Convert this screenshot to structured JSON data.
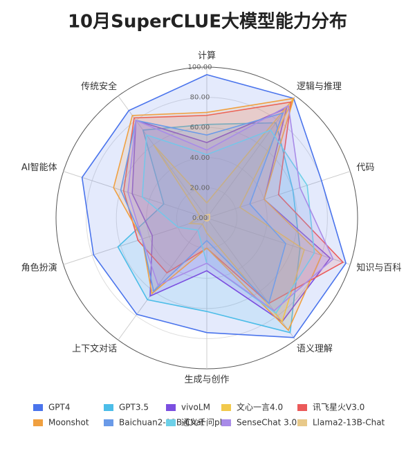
{
  "chart_data": {
    "type": "radar",
    "title": "10月SuperCLUE大模型能力分布",
    "categories": [
      "计算",
      "逻辑与推理",
      "代码",
      "知识与百科",
      "语义理解",
      "生成与创作",
      "上下文对话",
      "角色扮演",
      "AI智能体",
      "传统安全"
    ],
    "ylim": [
      0,
      100
    ],
    "yticks": [
      {
        "value": 0,
        "label": "0.00"
      },
      {
        "value": 20,
        "label": "20.00"
      },
      {
        "value": 40,
        "label": "40.00"
      },
      {
        "value": 60,
        "label": "60.00"
      },
      {
        "value": 80,
        "label": "80.00"
      },
      {
        "value": 100,
        "label": "100.00"
      }
    ],
    "grid": true,
    "series": [
      {
        "name": "GPT4",
        "color": "#4a74ec",
        "values": [
          95,
          98,
          80,
          97,
          98,
          76,
          79,
          79,
          87,
          88
        ]
      },
      {
        "name": "GPT3.5",
        "color": "#4cbde8",
        "values": [
          62,
          78,
          60,
          65,
          94,
          62,
          67,
          62,
          30,
          72
        ]
      },
      {
        "name": "vivoLM",
        "color": "#7b4fe0",
        "values": [
          50,
          90,
          40,
          86,
          85,
          35,
          64,
          38,
          52,
          80
        ]
      },
      {
        "name": "文心一言4.0",
        "color": "#f2c94c",
        "values": [
          10,
          98,
          23,
          68,
          85,
          10,
          5,
          12,
          5,
          60
        ]
      },
      {
        "name": "讯飞星火V3.0",
        "color": "#eb5a5a",
        "values": [
          68,
          95,
          50,
          95,
          70,
          20,
          45,
          48,
          58,
          82
        ]
      },
      {
        "name": "Moonshot",
        "color": "#f0a040",
        "values": [
          70,
          98,
          40,
          80,
          92,
          20,
          62,
          45,
          65,
          84
        ]
      },
      {
        "name": "Baichuan2-13B-Chat",
        "color": "#6a9ae8",
        "values": [
          55,
          86,
          30,
          55,
          70,
          15,
          60,
          45,
          60,
          80
        ]
      },
      {
        "name": "通义千问plus",
        "color": "#6dd0e8",
        "values": [
          42,
          72,
          70,
          75,
          78,
          30,
          10,
          20,
          45,
          68
        ]
      },
      {
        "name": "SenseChat 3.0",
        "color": "#a88be8",
        "values": [
          45,
          92,
          65,
          88,
          76,
          30,
          55,
          45,
          55,
          80
        ]
      },
      {
        "name": "Llama2-13B-Chat",
        "color": "#e8c98a",
        "values": [
          2,
          3,
          2,
          2,
          2,
          2,
          2,
          2,
          2,
          2
        ]
      }
    ]
  }
}
